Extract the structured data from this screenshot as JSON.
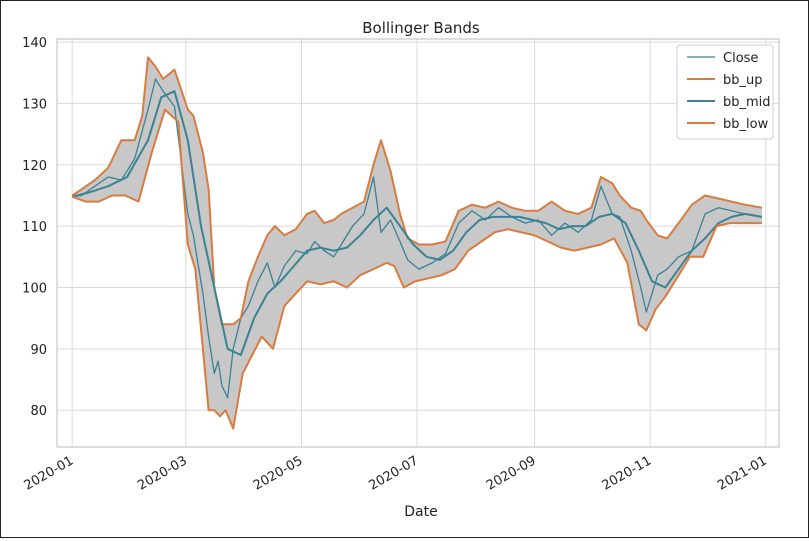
{
  "chart_data": {
    "type": "line",
    "title": "Bollinger Bands",
    "xlabel": "Date",
    "ylabel": "",
    "xlim": [
      "2019-12-24",
      "2021-01-08"
    ],
    "ylim": [
      74,
      140.5
    ],
    "grid": true,
    "legend_position": "top-right",
    "x_ticks": [
      {
        "date": "2020-01-01",
        "label": "2020-01"
      },
      {
        "date": "2020-03-01",
        "label": "2020-03"
      },
      {
        "date": "2020-05-01",
        "label": "2020-05"
      },
      {
        "date": "2020-07-01",
        "label": "2020-07"
      },
      {
        "date": "2020-09-01",
        "label": "2020-09"
      },
      {
        "date": "2020-11-01",
        "label": "2020-11"
      },
      {
        "date": "2021-01-01",
        "label": "2021-01"
      }
    ],
    "y_ticks": [
      80,
      90,
      100,
      110,
      120,
      130,
      140
    ],
    "band_fill_color": "#c8c8c8",
    "series": [
      {
        "name": "Close",
        "color": "#3b8295",
        "x": [
          "2020-01-01",
          "2020-01-06",
          "2020-01-13",
          "2020-01-20",
          "2020-01-27",
          "2020-02-03",
          "2020-02-10",
          "2020-02-14",
          "2020-02-18",
          "2020-02-24",
          "2020-03-02",
          "2020-03-05",
          "2020-03-10",
          "2020-03-13",
          "2020-03-16",
          "2020-03-18",
          "2020-03-20",
          "2020-03-23",
          "2020-03-26",
          "2020-03-30",
          "2020-04-03",
          "2020-04-08",
          "2020-04-13",
          "2020-04-17",
          "2020-04-22",
          "2020-04-28",
          "2020-05-04",
          "2020-05-08",
          "2020-05-13",
          "2020-05-18",
          "2020-05-22",
          "2020-05-28",
          "2020-06-03",
          "2020-06-08",
          "2020-06-12",
          "2020-06-17",
          "2020-06-22",
          "2020-06-26",
          "2020-07-02",
          "2020-07-09",
          "2020-07-16",
          "2020-07-23",
          "2020-07-30",
          "2020-08-06",
          "2020-08-13",
          "2020-08-20",
          "2020-08-27",
          "2020-09-03",
          "2020-09-10",
          "2020-09-17",
          "2020-09-24",
          "2020-10-01",
          "2020-10-06",
          "2020-10-12",
          "2020-10-16",
          "2020-10-22",
          "2020-10-27",
          "2020-10-30",
          "2020-11-05",
          "2020-11-10",
          "2020-11-16",
          "2020-11-23",
          "2020-11-30",
          "2020-12-07",
          "2020-12-14",
          "2020-12-21",
          "2020-12-30"
        ],
        "y": [
          114.8,
          115.0,
          116.5,
          118.0,
          117.5,
          121.0,
          129.0,
          134.0,
          132.0,
          129.5,
          112.0,
          108.5,
          99.0,
          92.0,
          86.0,
          88.0,
          84.0,
          82.0,
          90.0,
          95.0,
          97.0,
          101.0,
          104.0,
          100.0,
          103.5,
          106.0,
          105.5,
          107.5,
          106.0,
          105.0,
          107.0,
          110.0,
          112.0,
          118.0,
          109.0,
          111.0,
          107.5,
          104.5,
          103.0,
          104.0,
          105.5,
          110.5,
          112.5,
          111.0,
          113.0,
          111.5,
          110.5,
          111.0,
          108.5,
          110.5,
          109.0,
          111.0,
          116.5,
          112.0,
          111.5,
          106.0,
          100.0,
          96.0,
          102.0,
          103.0,
          105.0,
          106.0,
          112.0,
          113.0,
          112.5,
          112.0,
          111.5
        ]
      },
      {
        "name": "bb_up",
        "color": "#d97b3f",
        "x": [
          "2020-01-01",
          "2020-01-06",
          "2020-01-13",
          "2020-01-20",
          "2020-01-27",
          "2020-02-03",
          "2020-02-07",
          "2020-02-10",
          "2020-02-14",
          "2020-02-18",
          "2020-02-24",
          "2020-03-02",
          "2020-03-05",
          "2020-03-10",
          "2020-03-13",
          "2020-03-16",
          "2020-03-20",
          "2020-03-26",
          "2020-03-30",
          "2020-04-03",
          "2020-04-08",
          "2020-04-13",
          "2020-04-17",
          "2020-04-22",
          "2020-04-28",
          "2020-05-04",
          "2020-05-08",
          "2020-05-13",
          "2020-05-18",
          "2020-05-22",
          "2020-05-28",
          "2020-06-03",
          "2020-06-08",
          "2020-06-12",
          "2020-06-17",
          "2020-06-22",
          "2020-06-26",
          "2020-07-02",
          "2020-07-09",
          "2020-07-16",
          "2020-07-23",
          "2020-07-30",
          "2020-08-06",
          "2020-08-13",
          "2020-08-20",
          "2020-08-27",
          "2020-09-03",
          "2020-09-10",
          "2020-09-17",
          "2020-09-24",
          "2020-10-01",
          "2020-10-06",
          "2020-10-12",
          "2020-10-16",
          "2020-10-22",
          "2020-10-27",
          "2020-10-30",
          "2020-11-05",
          "2020-11-10",
          "2020-11-16",
          "2020-11-23",
          "2020-11-30",
          "2020-12-07",
          "2020-12-14",
          "2020-12-21",
          "2020-12-30"
        ],
        "y": [
          115.0,
          116.0,
          117.5,
          119.5,
          124.0,
          124.0,
          128.0,
          137.5,
          136.0,
          134.0,
          135.5,
          129.0,
          128.0,
          122.0,
          116.0,
          100.0,
          94.0,
          94.0,
          95.0,
          101.0,
          105.0,
          108.5,
          110.0,
          108.5,
          109.5,
          112.0,
          112.5,
          110.5,
          111.0,
          112.0,
          113.0,
          114.0,
          120.0,
          124.0,
          119.0,
          112.0,
          108.0,
          107.0,
          107.0,
          107.5,
          112.5,
          113.5,
          113.0,
          114.0,
          113.0,
          112.5,
          112.5,
          114.0,
          112.5,
          112.0,
          113.0,
          118.0,
          117.0,
          115.0,
          113.0,
          112.5,
          111.0,
          108.5,
          108.0,
          110.5,
          113.5,
          115.0,
          114.5,
          114.0,
          113.5,
          113.0
        ]
      },
      {
        "name": "bb_mid",
        "color": "#3b8295",
        "x": [
          "2020-01-01",
          "2020-01-10",
          "2020-01-20",
          "2020-01-30",
          "2020-02-10",
          "2020-02-17",
          "2020-02-24",
          "2020-03-02",
          "2020-03-09",
          "2020-03-16",
          "2020-03-23",
          "2020-03-30",
          "2020-04-06",
          "2020-04-13",
          "2020-04-20",
          "2020-04-27",
          "2020-05-04",
          "2020-05-11",
          "2020-05-18",
          "2020-05-25",
          "2020-06-01",
          "2020-06-08",
          "2020-06-15",
          "2020-06-22",
          "2020-06-29",
          "2020-07-06",
          "2020-07-13",
          "2020-07-20",
          "2020-07-27",
          "2020-08-03",
          "2020-08-10",
          "2020-08-17",
          "2020-08-24",
          "2020-08-31",
          "2020-09-07",
          "2020-09-14",
          "2020-09-21",
          "2020-09-28",
          "2020-10-05",
          "2020-10-12",
          "2020-10-19",
          "2020-10-26",
          "2020-11-02",
          "2020-11-09",
          "2020-11-16",
          "2020-11-23",
          "2020-11-30",
          "2020-12-07",
          "2020-12-14",
          "2020-12-21",
          "2020-12-30"
        ],
        "y": [
          114.8,
          115.5,
          116.5,
          118.0,
          124.0,
          131.0,
          132.0,
          124.0,
          110.0,
          100.0,
          90.0,
          89.0,
          95.0,
          99.0,
          101.0,
          103.5,
          106.0,
          106.5,
          106.0,
          106.5,
          108.5,
          111.0,
          113.0,
          110.0,
          107.0,
          105.0,
          104.5,
          106.0,
          109.0,
          111.0,
          111.5,
          111.5,
          111.5,
          111.0,
          110.5,
          109.5,
          110.0,
          110.0,
          111.5,
          112.0,
          110.5,
          106.0,
          101.0,
          100.0,
          103.0,
          106.0,
          108.0,
          110.5,
          111.5,
          112.0,
          111.5
        ]
      },
      {
        "name": "bb_low",
        "color": "#d97b3f",
        "x": [
          "2020-01-01",
          "2020-01-08",
          "2020-01-15",
          "2020-01-22",
          "2020-01-29",
          "2020-02-05",
          "2020-02-12",
          "2020-02-19",
          "2020-02-26",
          "2020-03-02",
          "2020-03-06",
          "2020-03-10",
          "2020-03-13",
          "2020-03-16",
          "2020-03-19",
          "2020-03-22",
          "2020-03-26",
          "2020-03-31",
          "2020-04-05",
          "2020-04-10",
          "2020-04-16",
          "2020-04-22",
          "2020-04-28",
          "2020-05-04",
          "2020-05-11",
          "2020-05-18",
          "2020-05-25",
          "2020-06-01",
          "2020-06-08",
          "2020-06-15",
          "2020-06-19",
          "2020-06-24",
          "2020-06-30",
          "2020-07-07",
          "2020-07-14",
          "2020-07-21",
          "2020-07-28",
          "2020-08-04",
          "2020-08-11",
          "2020-08-18",
          "2020-08-25",
          "2020-09-01",
          "2020-09-08",
          "2020-09-15",
          "2020-09-22",
          "2020-09-29",
          "2020-10-06",
          "2020-10-13",
          "2020-10-20",
          "2020-10-26",
          "2020-10-30",
          "2020-11-04",
          "2020-11-09",
          "2020-11-15",
          "2020-11-22",
          "2020-11-29",
          "2020-12-06",
          "2020-12-13",
          "2020-12-20",
          "2020-12-30"
        ],
        "y": [
          114.8,
          114.0,
          114.0,
          115.0,
          115.0,
          114.0,
          122.0,
          129.0,
          127.0,
          107.0,
          103.0,
          90.0,
          80.0,
          80.0,
          79.0,
          80.0,
          77.0,
          86.0,
          89.0,
          92.0,
          90.0,
          97.0,
          99.0,
          101.0,
          100.5,
          101.0,
          100.0,
          102.0,
          103.0,
          104.0,
          103.5,
          100.0,
          101.0,
          101.5,
          102.0,
          103.0,
          106.0,
          107.5,
          109.0,
          109.5,
          109.0,
          108.5,
          107.5,
          106.5,
          106.0,
          106.5,
          107.0,
          108.0,
          104.0,
          94.0,
          93.0,
          96.5,
          98.5,
          101.5,
          105.0,
          105.0,
          110.0,
          110.5,
          110.5,
          110.5
        ]
      }
    ]
  }
}
